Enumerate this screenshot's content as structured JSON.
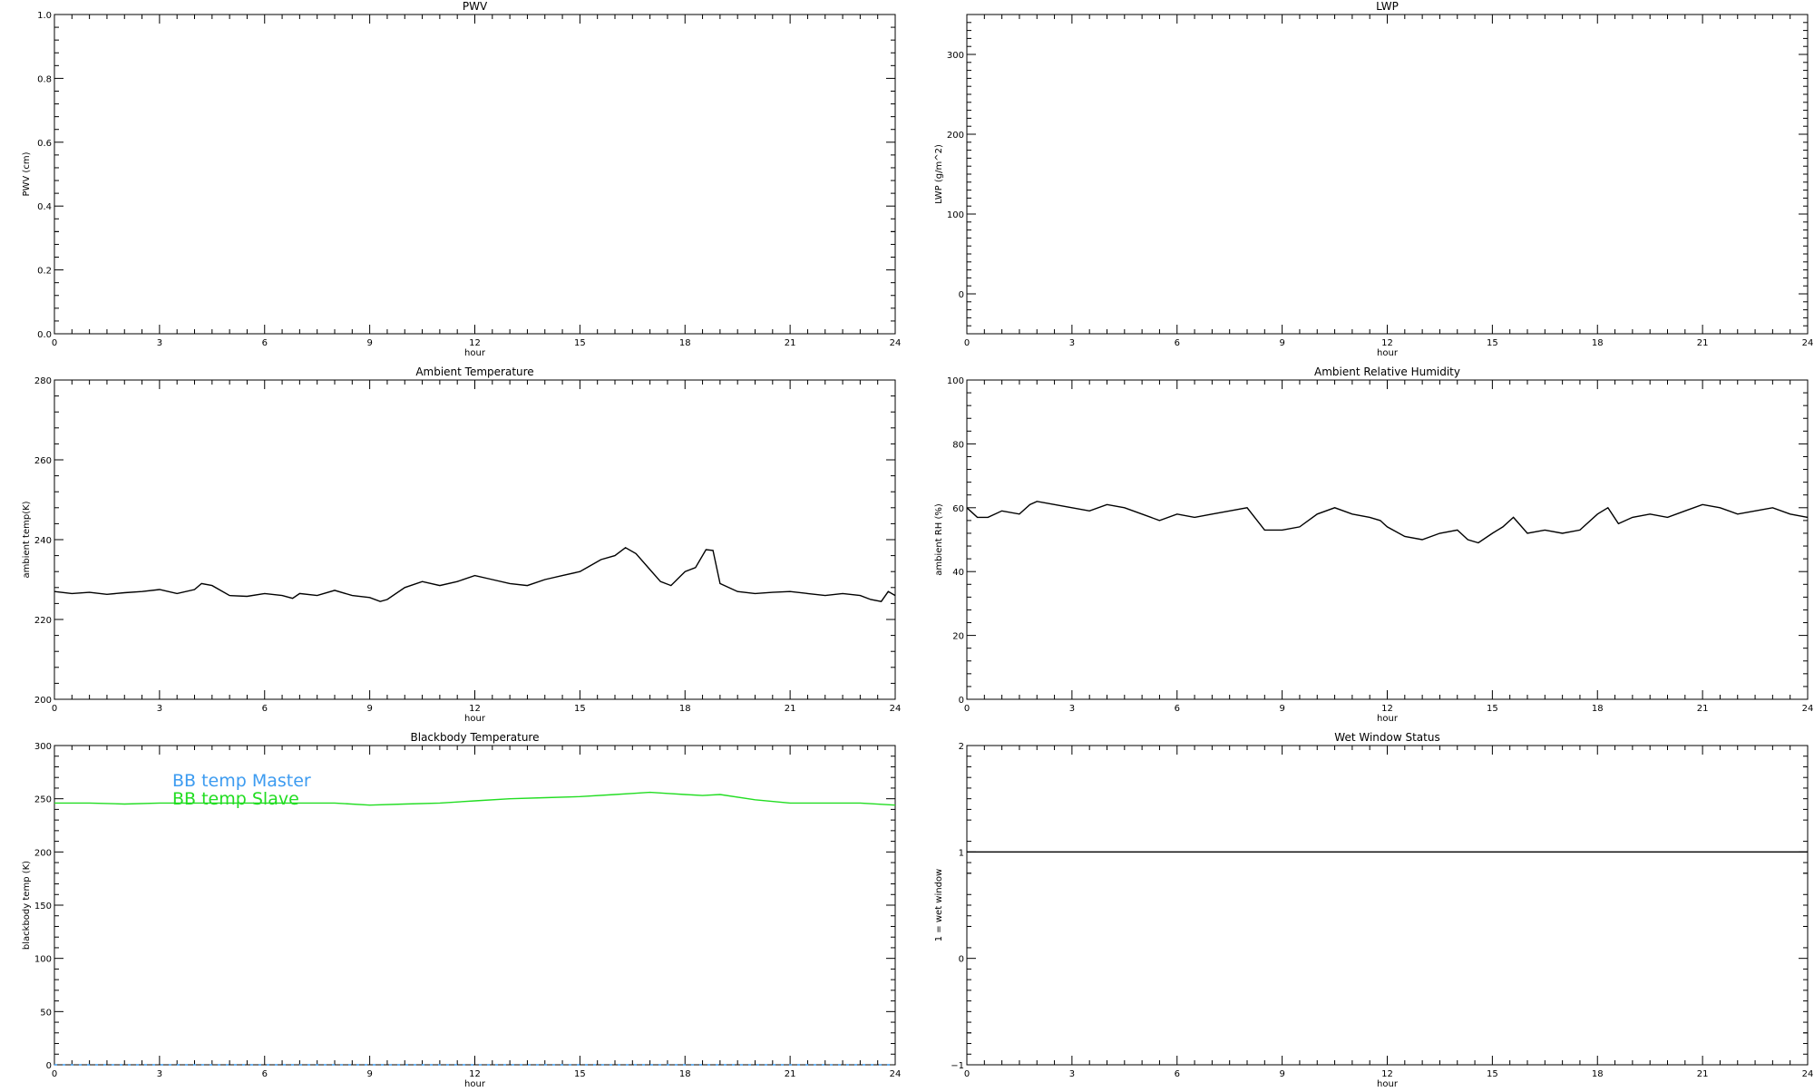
{
  "chart_data": [
    {
      "type": "line",
      "title": "PWV",
      "xlabel": "hour",
      "ylabel": "PWV (cm)",
      "xlim": [
        0,
        24
      ],
      "ylim": [
        0,
        1
      ],
      "xticks": [
        "0",
        "3",
        "6",
        "9",
        "12",
        "15",
        "18",
        "21",
        "24"
      ],
      "yticks": [
        "0.0",
        "0.2",
        "0.4",
        "0.6",
        "0.8",
        "1.0"
      ],
      "series": []
    },
    {
      "type": "line",
      "title": "LWP",
      "xlabel": "hour",
      "ylabel": "LWP (g/m^2)",
      "xlim": [
        0,
        24
      ],
      "ylim": [
        -50,
        350
      ],
      "xticks": [
        "0",
        "3",
        "6",
        "9",
        "12",
        "15",
        "18",
        "21",
        "24"
      ],
      "yticks": [
        "0",
        "100",
        "200",
        "300"
      ],
      "series": []
    },
    {
      "type": "line",
      "title": "Ambient Temperature",
      "xlabel": "hour",
      "ylabel": "ambient temp(K)",
      "xlim": [
        0,
        24
      ],
      "ylim": [
        200,
        280
      ],
      "xticks": [
        "0",
        "3",
        "6",
        "9",
        "12",
        "15",
        "18",
        "21",
        "24"
      ],
      "yticks": [
        "200",
        "220",
        "240",
        "260",
        "280"
      ],
      "series": [
        {
          "color": "#000000",
          "x": [
            0,
            0.5,
            1,
            1.5,
            2,
            2.5,
            3,
            3.5,
            4,
            4.2,
            4.5,
            5,
            5.5,
            6,
            6.5,
            6.8,
            7,
            7.5,
            8,
            8.5,
            9,
            9.3,
            9.5,
            10,
            10.5,
            11,
            11.5,
            12,
            12.5,
            13,
            13.5,
            14,
            14.5,
            15,
            15.3,
            15.6,
            16,
            16.3,
            16.6,
            17,
            17.3,
            17.6,
            18,
            18.3,
            18.6,
            18.8,
            19,
            19.5,
            20,
            20.5,
            21,
            21.5,
            22,
            22.5,
            23,
            23.3,
            23.6,
            23.8,
            24
          ],
          "y": [
            227,
            226.5,
            226.8,
            226.3,
            226.7,
            227,
            227.5,
            226.5,
            227.5,
            229,
            228.5,
            226,
            225.8,
            226.5,
            226,
            225.3,
            226.5,
            226,
            227.3,
            226,
            225.5,
            224.5,
            225,
            228,
            229.5,
            228.5,
            229.5,
            231,
            230,
            229,
            228.5,
            230,
            231,
            232,
            233.5,
            235,
            236,
            238,
            236.5,
            232.5,
            229.5,
            228.5,
            232,
            233,
            237.5,
            237.3,
            229,
            227,
            226.5,
            226.8,
            227,
            226.5,
            226,
            226.5,
            226,
            225,
            224.5,
            227,
            226
          ]
        }
      ]
    },
    {
      "type": "line",
      "title": "Ambient Relative Humidity",
      "xlabel": "hour",
      "ylabel": "ambient RH (%)",
      "xlim": [
        0,
        24
      ],
      "ylim": [
        0,
        100
      ],
      "xticks": [
        "0",
        "3",
        "6",
        "9",
        "12",
        "15",
        "18",
        "21",
        "24"
      ],
      "yticks": [
        "0",
        "20",
        "40",
        "60",
        "80",
        "100"
      ],
      "series": [
        {
          "color": "#000000",
          "x": [
            0,
            0.3,
            0.6,
            1,
            1.5,
            1.8,
            2,
            2.5,
            3,
            3.5,
            4,
            4.5,
            5,
            5.5,
            6,
            6.5,
            7,
            7.5,
            8,
            8.5,
            9,
            9.5,
            10,
            10.5,
            11,
            11.5,
            11.8,
            12,
            12.5,
            13,
            13.5,
            14,
            14.3,
            14.6,
            15,
            15.3,
            15.6,
            16,
            16.5,
            17,
            17.5,
            18,
            18.3,
            18.6,
            19,
            19.5,
            20,
            20.5,
            21,
            21.5,
            22,
            22.5,
            23,
            23.5,
            24
          ],
          "y": [
            60,
            57,
            57,
            59,
            58,
            61,
            62,
            61,
            60,
            59,
            61,
            60,
            58,
            56,
            58,
            57,
            58,
            59,
            60,
            53,
            53,
            54,
            58,
            60,
            58,
            57,
            56,
            54,
            51,
            50,
            52,
            53,
            50,
            49,
            52,
            54,
            57,
            52,
            53,
            52,
            53,
            58,
            60,
            55,
            57,
            58,
            57,
            59,
            61,
            60,
            58,
            59,
            60,
            58,
            57
          ]
        }
      ]
    },
    {
      "type": "line",
      "title": "Blackbody Temperature",
      "xlabel": "hour",
      "ylabel": "blackbody temp (K)",
      "xlim": [
        0,
        24
      ],
      "ylim": [
        0,
        300
      ],
      "xticks": [
        "0",
        "3",
        "6",
        "9",
        "12",
        "15",
        "18",
        "21",
        "24"
      ],
      "yticks": [
        "0",
        "50",
        "100",
        "150",
        "200",
        "250",
        "300"
      ],
      "legend": [
        "BB temp Master",
        "BB temp Slave"
      ],
      "series": [
        {
          "name": "BB temp Master",
          "color": "#3c9bf0",
          "x": [
            0,
            24
          ],
          "y": [
            0,
            0
          ]
        },
        {
          "name": "BB temp Slave",
          "color": "#22dd22",
          "x": [
            0,
            1,
            2,
            3,
            4,
            5,
            6,
            7,
            8,
            9,
            10,
            11,
            12,
            13,
            14,
            15,
            16,
            16.5,
            17,
            17.5,
            18,
            18.5,
            19,
            20,
            21,
            22,
            23,
            24
          ],
          "y": [
            246,
            246,
            245,
            246,
            246,
            246,
            246,
            246,
            246,
            244,
            245,
            246,
            248,
            250,
            251,
            252,
            254,
            255,
            256,
            255,
            254,
            253,
            254,
            249,
            246,
            246,
            246,
            244
          ]
        }
      ]
    },
    {
      "type": "line",
      "title": "Wet Window Status",
      "xlabel": "hour",
      "ylabel": "1 = wet window",
      "xlim": [
        0,
        24
      ],
      "ylim": [
        -1,
        2
      ],
      "xticks": [
        "0",
        "3",
        "6",
        "9",
        "12",
        "15",
        "18",
        "21",
        "24"
      ],
      "yticks": [
        "−1",
        "0",
        "1",
        "2"
      ],
      "series": [
        {
          "color": "#000000",
          "x": [
            0,
            24
          ],
          "y": [
            1,
            1
          ]
        }
      ]
    }
  ]
}
